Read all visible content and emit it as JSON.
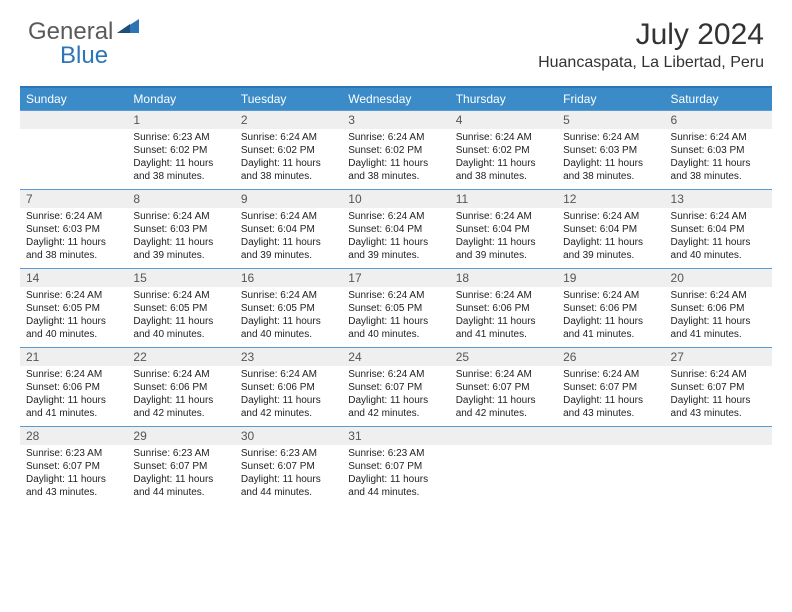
{
  "brand": {
    "text_gray": "General",
    "text_blue": "Blue"
  },
  "title": {
    "month": "July 2024",
    "location": "Huancaspata, La Libertad, Peru"
  },
  "colors": {
    "header_bg": "#3b8bc8",
    "header_border": "#2e75b6",
    "cell_border": "#5b9bd5",
    "daynum_bg": "#efefef",
    "text": "#222222"
  },
  "day_labels": [
    "Sunday",
    "Monday",
    "Tuesday",
    "Wednesday",
    "Thursday",
    "Friday",
    "Saturday"
  ],
  "weeks": [
    [
      {
        "num": "",
        "lines": []
      },
      {
        "num": "1",
        "lines": [
          "Sunrise: 6:23 AM",
          "Sunset: 6:02 PM",
          "Daylight: 11 hours",
          "and 38 minutes."
        ]
      },
      {
        "num": "2",
        "lines": [
          "Sunrise: 6:24 AM",
          "Sunset: 6:02 PM",
          "Daylight: 11 hours",
          "and 38 minutes."
        ]
      },
      {
        "num": "3",
        "lines": [
          "Sunrise: 6:24 AM",
          "Sunset: 6:02 PM",
          "Daylight: 11 hours",
          "and 38 minutes."
        ]
      },
      {
        "num": "4",
        "lines": [
          "Sunrise: 6:24 AM",
          "Sunset: 6:02 PM",
          "Daylight: 11 hours",
          "and 38 minutes."
        ]
      },
      {
        "num": "5",
        "lines": [
          "Sunrise: 6:24 AM",
          "Sunset: 6:03 PM",
          "Daylight: 11 hours",
          "and 38 minutes."
        ]
      },
      {
        "num": "6",
        "lines": [
          "Sunrise: 6:24 AM",
          "Sunset: 6:03 PM",
          "Daylight: 11 hours",
          "and 38 minutes."
        ]
      }
    ],
    [
      {
        "num": "7",
        "lines": [
          "Sunrise: 6:24 AM",
          "Sunset: 6:03 PM",
          "Daylight: 11 hours",
          "and 38 minutes."
        ]
      },
      {
        "num": "8",
        "lines": [
          "Sunrise: 6:24 AM",
          "Sunset: 6:03 PM",
          "Daylight: 11 hours",
          "and 39 minutes."
        ]
      },
      {
        "num": "9",
        "lines": [
          "Sunrise: 6:24 AM",
          "Sunset: 6:04 PM",
          "Daylight: 11 hours",
          "and 39 minutes."
        ]
      },
      {
        "num": "10",
        "lines": [
          "Sunrise: 6:24 AM",
          "Sunset: 6:04 PM",
          "Daylight: 11 hours",
          "and 39 minutes."
        ]
      },
      {
        "num": "11",
        "lines": [
          "Sunrise: 6:24 AM",
          "Sunset: 6:04 PM",
          "Daylight: 11 hours",
          "and 39 minutes."
        ]
      },
      {
        "num": "12",
        "lines": [
          "Sunrise: 6:24 AM",
          "Sunset: 6:04 PM",
          "Daylight: 11 hours",
          "and 39 minutes."
        ]
      },
      {
        "num": "13",
        "lines": [
          "Sunrise: 6:24 AM",
          "Sunset: 6:04 PM",
          "Daylight: 11 hours",
          "and 40 minutes."
        ]
      }
    ],
    [
      {
        "num": "14",
        "lines": [
          "Sunrise: 6:24 AM",
          "Sunset: 6:05 PM",
          "Daylight: 11 hours",
          "and 40 minutes."
        ]
      },
      {
        "num": "15",
        "lines": [
          "Sunrise: 6:24 AM",
          "Sunset: 6:05 PM",
          "Daylight: 11 hours",
          "and 40 minutes."
        ]
      },
      {
        "num": "16",
        "lines": [
          "Sunrise: 6:24 AM",
          "Sunset: 6:05 PM",
          "Daylight: 11 hours",
          "and 40 minutes."
        ]
      },
      {
        "num": "17",
        "lines": [
          "Sunrise: 6:24 AM",
          "Sunset: 6:05 PM",
          "Daylight: 11 hours",
          "and 40 minutes."
        ]
      },
      {
        "num": "18",
        "lines": [
          "Sunrise: 6:24 AM",
          "Sunset: 6:06 PM",
          "Daylight: 11 hours",
          "and 41 minutes."
        ]
      },
      {
        "num": "19",
        "lines": [
          "Sunrise: 6:24 AM",
          "Sunset: 6:06 PM",
          "Daylight: 11 hours",
          "and 41 minutes."
        ]
      },
      {
        "num": "20",
        "lines": [
          "Sunrise: 6:24 AM",
          "Sunset: 6:06 PM",
          "Daylight: 11 hours",
          "and 41 minutes."
        ]
      }
    ],
    [
      {
        "num": "21",
        "lines": [
          "Sunrise: 6:24 AM",
          "Sunset: 6:06 PM",
          "Daylight: 11 hours",
          "and 41 minutes."
        ]
      },
      {
        "num": "22",
        "lines": [
          "Sunrise: 6:24 AM",
          "Sunset: 6:06 PM",
          "Daylight: 11 hours",
          "and 42 minutes."
        ]
      },
      {
        "num": "23",
        "lines": [
          "Sunrise: 6:24 AM",
          "Sunset: 6:06 PM",
          "Daylight: 11 hours",
          "and 42 minutes."
        ]
      },
      {
        "num": "24",
        "lines": [
          "Sunrise: 6:24 AM",
          "Sunset: 6:07 PM",
          "Daylight: 11 hours",
          "and 42 minutes."
        ]
      },
      {
        "num": "25",
        "lines": [
          "Sunrise: 6:24 AM",
          "Sunset: 6:07 PM",
          "Daylight: 11 hours",
          "and 42 minutes."
        ]
      },
      {
        "num": "26",
        "lines": [
          "Sunrise: 6:24 AM",
          "Sunset: 6:07 PM",
          "Daylight: 11 hours",
          "and 43 minutes."
        ]
      },
      {
        "num": "27",
        "lines": [
          "Sunrise: 6:24 AM",
          "Sunset: 6:07 PM",
          "Daylight: 11 hours",
          "and 43 minutes."
        ]
      }
    ],
    [
      {
        "num": "28",
        "lines": [
          "Sunrise: 6:23 AM",
          "Sunset: 6:07 PM",
          "Daylight: 11 hours",
          "and 43 minutes."
        ]
      },
      {
        "num": "29",
        "lines": [
          "Sunrise: 6:23 AM",
          "Sunset: 6:07 PM",
          "Daylight: 11 hours",
          "and 44 minutes."
        ]
      },
      {
        "num": "30",
        "lines": [
          "Sunrise: 6:23 AM",
          "Sunset: 6:07 PM",
          "Daylight: 11 hours",
          "and 44 minutes."
        ]
      },
      {
        "num": "31",
        "lines": [
          "Sunrise: 6:23 AM",
          "Sunset: 6:07 PM",
          "Daylight: 11 hours",
          "and 44 minutes."
        ]
      },
      {
        "num": "",
        "lines": []
      },
      {
        "num": "",
        "lines": []
      },
      {
        "num": "",
        "lines": []
      }
    ]
  ]
}
